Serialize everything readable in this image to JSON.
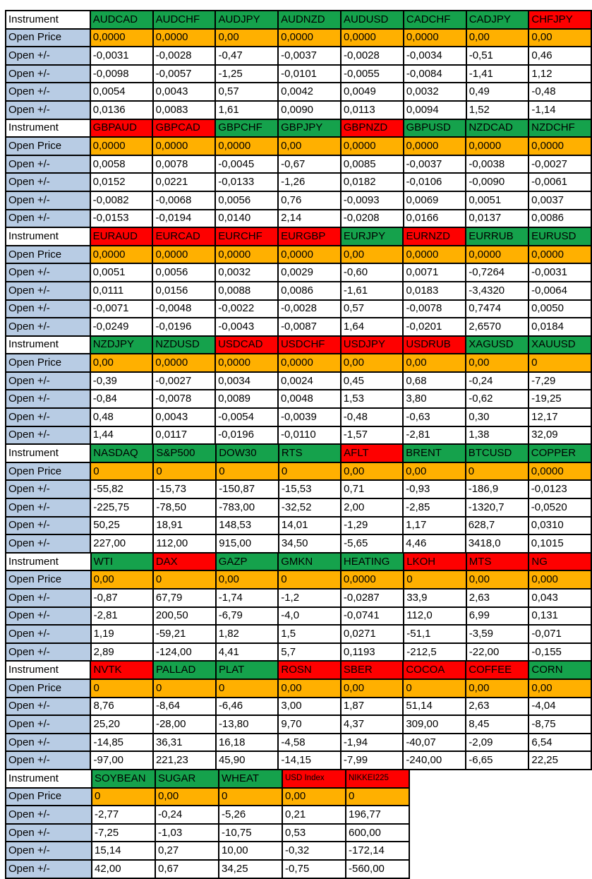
{
  "labels": {
    "instrument": "Instrument",
    "open_price": "Open Price",
    "open_delta": "Open +/-"
  },
  "colors": {
    "green": "#15A24C",
    "red": "#FE0000",
    "orange": "#FFB000",
    "label_blue": "#B8CCE4",
    "border": "#000000"
  },
  "blocks": [
    {
      "instruments": [
        {
          "name": "AUDCAD",
          "color": "green",
          "open_price": "0,0000",
          "deltas": [
            "-0,0031",
            "-0,0098",
            "0,0054",
            "0,0136"
          ]
        },
        {
          "name": "AUDCHF",
          "color": "green",
          "open_price": "0,0000",
          "deltas": [
            "-0,0028",
            "-0,0057",
            "0,0043",
            "0,0083"
          ]
        },
        {
          "name": "AUDJPY",
          "color": "green",
          "open_price": "0,00",
          "deltas": [
            "-0,47",
            "-1,25",
            "0,57",
            "1,61"
          ]
        },
        {
          "name": "AUDNZD",
          "color": "green",
          "open_price": "0,0000",
          "deltas": [
            "-0,0037",
            "-0,0101",
            "0,0042",
            "0,0090"
          ]
        },
        {
          "name": "AUDUSD",
          "color": "green",
          "open_price": "0,0000",
          "deltas": [
            "-0,0028",
            "-0,0055",
            "0,0049",
            "0,0113"
          ]
        },
        {
          "name": "CADCHF",
          "color": "green",
          "open_price": "0,0000",
          "deltas": [
            "-0,0034",
            "-0,0084",
            "0,0032",
            "0,0094"
          ]
        },
        {
          "name": "CADJPY",
          "color": "green",
          "open_price": "0,00",
          "deltas": [
            "-0,51",
            "-1,41",
            "0,49",
            "1,52"
          ]
        },
        {
          "name": "CHFJPY",
          "color": "red",
          "open_price": "0,00",
          "deltas": [
            "0,46",
            "1,12",
            "-0,48",
            "-1,14"
          ]
        }
      ]
    },
    {
      "instruments": [
        {
          "name": "GBPAUD",
          "color": "red",
          "open_price": "0,0000",
          "deltas": [
            "0,0058",
            "0,0152",
            "-0,0082",
            "-0,0153"
          ]
        },
        {
          "name": "GBPCAD",
          "color": "red",
          "open_price": "0,0000",
          "deltas": [
            "0,0078",
            "0,0221",
            "-0,0068",
            "-0,0194"
          ]
        },
        {
          "name": "GBPCHF",
          "color": "green",
          "open_price": "0,0000",
          "deltas": [
            "-0,0045",
            "-0,0133",
            "0,0056",
            "0,0140"
          ]
        },
        {
          "name": "GBPJPY",
          "color": "green",
          "open_price": "0,00",
          "deltas": [
            "-0,67",
            "-1,26",
            "0,76",
            "2,14"
          ]
        },
        {
          "name": "GBPNZD",
          "color": "red",
          "open_price": "0,0000",
          "deltas": [
            "0,0085",
            "0,0182",
            "-0,0093",
            "-0,0208"
          ]
        },
        {
          "name": "GBPUSD",
          "color": "green",
          "open_price": "0,0000",
          "deltas": [
            "-0,0037",
            "-0,0106",
            "0,0069",
            "0,0166"
          ]
        },
        {
          "name": "NZDCAD",
          "color": "green",
          "open_price": "0,0000",
          "deltas": [
            "-0,0038",
            "-0,0090",
            "0,0051",
            "0,0137"
          ]
        },
        {
          "name": "NZDCHF",
          "color": "green",
          "open_price": "0,0000",
          "deltas": [
            "-0,0027",
            "-0,0061",
            "0,0037",
            "0,0086"
          ]
        }
      ]
    },
    {
      "instruments": [
        {
          "name": "EURAUD",
          "color": "red",
          "open_price": "0,0000",
          "deltas": [
            "0,0051",
            "0,0111",
            "-0,0071",
            "-0,0249"
          ]
        },
        {
          "name": "EURCAD",
          "color": "red",
          "open_price": "0,0000",
          "deltas": [
            "0,0056",
            "0,0156",
            "-0,0048",
            "-0,0196"
          ]
        },
        {
          "name": "EURCHF",
          "color": "red",
          "open_price": "0,0000",
          "deltas": [
            "0,0032",
            "0,0088",
            "-0,0022",
            "-0,0043"
          ]
        },
        {
          "name": "EURGBP",
          "color": "red",
          "open_price": "0,0000",
          "deltas": [
            "0,0029",
            "0,0086",
            "-0,0028",
            "-0,0087"
          ]
        },
        {
          "name": "EURJPY",
          "color": "green",
          "open_price": "0,00",
          "deltas": [
            "-0,60",
            "-1,61",
            "0,57",
            "1,64"
          ]
        },
        {
          "name": "EURNZD",
          "color": "red",
          "open_price": "0,0000",
          "deltas": [
            "0,0071",
            "0,0183",
            "-0,0078",
            "-0,0201"
          ]
        },
        {
          "name": "EURRUB",
          "color": "green",
          "open_price": "0,0000",
          "deltas": [
            "-0,7264",
            "-3,4320",
            "0,7474",
            "2,6570"
          ]
        },
        {
          "name": "EURUSD",
          "color": "green",
          "open_price": "0,0000",
          "deltas": [
            "-0,0031",
            "-0,0064",
            "0,0050",
            "0,0184"
          ]
        }
      ]
    },
    {
      "instruments": [
        {
          "name": "NZDJPY",
          "color": "green",
          "open_price": "0,00",
          "deltas": [
            "-0,39",
            "-0,84",
            "0,48",
            "1,44"
          ]
        },
        {
          "name": "NZDUSD",
          "color": "green",
          "open_price": "0,0000",
          "deltas": [
            "-0,0027",
            "-0,0078",
            "0,0043",
            "0,0117"
          ]
        },
        {
          "name": "USDCAD",
          "color": "red",
          "open_price": "0,0000",
          "deltas": [
            "0,0034",
            "0,0089",
            "-0,0054",
            "-0,0196"
          ]
        },
        {
          "name": "USDCHF",
          "color": "red",
          "open_price": "0,0000",
          "deltas": [
            "0,0024",
            "0,0048",
            "-0,0039",
            "-0,0110"
          ]
        },
        {
          "name": "USDJPY",
          "color": "red",
          "open_price": "0,00",
          "deltas": [
            "0,45",
            "1,53",
            "-0,48",
            "-1,57"
          ]
        },
        {
          "name": "USDRUB",
          "color": "red",
          "open_price": "0,00",
          "deltas": [
            "0,68",
            "3,80",
            "-0,63",
            "-2,81"
          ]
        },
        {
          "name": "XAGUSD",
          "color": "green",
          "open_price": "0,00",
          "deltas": [
            "-0,24",
            "-0,62",
            "0,30",
            "1,38"
          ]
        },
        {
          "name": "XAUUSD",
          "color": "green",
          "open_price": "0",
          "deltas": [
            "-7,29",
            "-19,25",
            "12,17",
            "32,09"
          ]
        }
      ]
    },
    {
      "instruments": [
        {
          "name": "NASDAQ",
          "color": "green",
          "open_price": "0",
          "deltas": [
            "-55,82",
            "-225,75",
            "50,25",
            "227,00"
          ]
        },
        {
          "name": "S&P500",
          "color": "green",
          "open_price": "0",
          "deltas": [
            "-15,73",
            "-78,50",
            "18,91",
            "112,00"
          ]
        },
        {
          "name": "DOW30",
          "color": "green",
          "open_price": "0",
          "deltas": [
            "-150,87",
            "-783,00",
            "148,53",
            "915,00"
          ]
        },
        {
          "name": "RTS",
          "color": "green",
          "open_price": "0",
          "deltas": [
            "-15,53",
            "-32,52",
            "14,01",
            "34,50"
          ]
        },
        {
          "name": "AFLT",
          "color": "red",
          "open_price": "0,00",
          "deltas": [
            "0,71",
            "2,00",
            "-1,29",
            "-5,65"
          ]
        },
        {
          "name": "BRENT",
          "color": "green",
          "open_price": "0,00",
          "deltas": [
            "-0,93",
            "-2,85",
            "1,17",
            "4,46"
          ]
        },
        {
          "name": "BTCUSD",
          "color": "green",
          "open_price": "0",
          "deltas": [
            "-186,9",
            "-1320,7",
            "628,7",
            "3418,0"
          ]
        },
        {
          "name": "COPPER",
          "color": "green",
          "open_price": "0,0000",
          "deltas": [
            "-0,0123",
            "-0,0520",
            "0,0310",
            "0,1015"
          ]
        }
      ]
    },
    {
      "instruments": [
        {
          "name": "WTI",
          "color": "green",
          "open_price": "0,00",
          "deltas": [
            "-0,87",
            "-2,81",
            "1,19",
            "2,89"
          ]
        },
        {
          "name": "DAX",
          "color": "red",
          "open_price": "0",
          "deltas": [
            "67,79",
            "200,50",
            "-59,21",
            "-124,00"
          ]
        },
        {
          "name": "GAZP",
          "color": "green",
          "open_price": "0,00",
          "deltas": [
            "-1,74",
            "-6,79",
            "1,82",
            "4,41"
          ]
        },
        {
          "name": "GMKN",
          "color": "green",
          "open_price": "0",
          "deltas": [
            "-1,2",
            "-4,0",
            "1,5",
            "5,7"
          ]
        },
        {
          "name": "HEATING",
          "color": "green",
          "open_price": "0,0000",
          "deltas": [
            "-0,0287",
            "-0,0741",
            "0,0271",
            "0,1193"
          ]
        },
        {
          "name": "LKOH",
          "color": "red",
          "open_price": "0",
          "deltas": [
            "33,9",
            "112,0",
            "-51,1",
            "-212,5"
          ]
        },
        {
          "name": "MTS",
          "color": "red",
          "open_price": "0,00",
          "deltas": [
            "2,63",
            "6,99",
            "-3,59",
            "-22,00"
          ]
        },
        {
          "name": "NG",
          "color": "red",
          "open_price": "0,000",
          "deltas": [
            "0,043",
            "0,131",
            "-0,071",
            "-0,155"
          ]
        }
      ]
    },
    {
      "instruments": [
        {
          "name": "NVTK",
          "color": "red",
          "open_price": "0",
          "deltas": [
            "8,76",
            "25,20",
            "-14,85",
            "-97,00"
          ]
        },
        {
          "name": "PALLAD",
          "color": "green",
          "open_price": "0",
          "deltas": [
            "-8,64",
            "-28,00",
            "36,31",
            "221,23"
          ]
        },
        {
          "name": "PLAT",
          "color": "green",
          "open_price": "0",
          "deltas": [
            "-6,46",
            "-13,80",
            "16,18",
            "45,90"
          ]
        },
        {
          "name": "ROSN",
          "color": "red",
          "open_price": "0,00",
          "deltas": [
            "3,00",
            "9,70",
            "-4,58",
            "-14,15"
          ]
        },
        {
          "name": "SBER",
          "color": "red",
          "open_price": "0,00",
          "deltas": [
            "1,87",
            "4,37",
            "-1,94",
            "-7,99"
          ]
        },
        {
          "name": "COCOA",
          "color": "red",
          "open_price": "0",
          "deltas": [
            "51,14",
            "309,00",
            "-40,07",
            "-240,00"
          ]
        },
        {
          "name": "COFFEE",
          "color": "red",
          "open_price": "0,00",
          "deltas": [
            "2,63",
            "8,45",
            "-2,09",
            "-6,65"
          ]
        },
        {
          "name": "CORN",
          "color": "green",
          "open_price": "0,00",
          "deltas": [
            "-4,04",
            "-8,75",
            "6,54",
            "22,25"
          ]
        }
      ]
    },
    {
      "instruments": [
        {
          "name": "SOYBEAN",
          "color": "green",
          "open_price": "0",
          "deltas": [
            "-2,77",
            "-7,25",
            "15,14",
            "42,00"
          ]
        },
        {
          "name": "SUGAR",
          "color": "green",
          "open_price": "0,00",
          "deltas": [
            "-0,24",
            "-1,03",
            "0,27",
            "0,67"
          ]
        },
        {
          "name": "WHEAT",
          "color": "green",
          "open_price": "0",
          "deltas": [
            "-5,26",
            "-10,75",
            "10,00",
            "34,25"
          ]
        },
        {
          "name": "USD Index",
          "color": "red",
          "small": true,
          "open_price": "0,00",
          "deltas": [
            "0,21",
            "0,53",
            "-0,32",
            "-0,75"
          ]
        },
        {
          "name": "NIKKEI225",
          "color": "red",
          "small": true,
          "open_price": "0",
          "deltas": [
            "196,77",
            "600,00",
            "-172,14",
            "-560,00"
          ]
        }
      ]
    }
  ]
}
